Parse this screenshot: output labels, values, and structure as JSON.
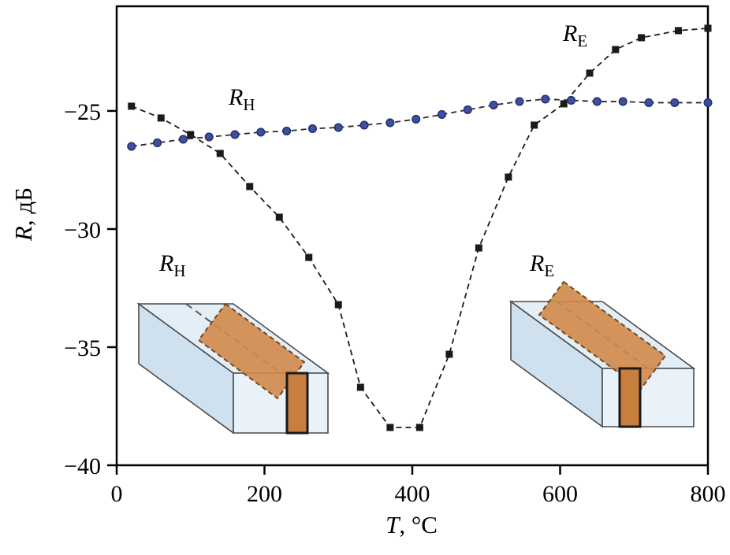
{
  "figure": {
    "y_axis": {
      "italic": "R",
      "rest": ", дБ"
    },
    "x_axis": {
      "italic": "T",
      "rest": ", °C"
    },
    "curve_labels": {
      "rh": {
        "symbol": "R",
        "sub": "H"
      },
      "re": {
        "symbol": "R",
        "sub": "E"
      }
    },
    "inset_labels": {
      "rh": {
        "symbol": "R",
        "sub": "H"
      },
      "re": {
        "symbol": "R",
        "sub": "E"
      }
    }
  },
  "chart_data": {
    "type": "line",
    "title": "",
    "xlabel": "T, °C",
    "ylabel": "R, дБ",
    "xlim": [
      0,
      800
    ],
    "ylim": [
      -40,
      -20.57
    ],
    "x_ticks": [
      0,
      200,
      400,
      600,
      800
    ],
    "y_ticks": [
      -25,
      -30,
      -35,
      -40
    ],
    "grid": false,
    "legend": "inline-labels",
    "series": [
      {
        "id": "re",
        "name": "R_E",
        "marker": "square",
        "marker_color": "#1a1a1a",
        "line_color": "#1a1a1a",
        "line_style": "dashed",
        "x": [
          20,
          60,
          100,
          140,
          180,
          220,
          260,
          300,
          330,
          370,
          410,
          450,
          490,
          530,
          565,
          605,
          640,
          675,
          710,
          760,
          800
        ],
        "y": [
          -24.8,
          -25.3,
          -26.0,
          -26.8,
          -28.2,
          -29.5,
          -31.2,
          -33.2,
          -36.7,
          -38.4,
          -38.4,
          -35.3,
          -30.8,
          -27.8,
          -25.6,
          -24.7,
          -23.4,
          -22.4,
          -21.9,
          -21.6,
          -21.5
        ]
      },
      {
        "id": "rh",
        "name": "R_H",
        "marker": "circle",
        "marker_color": "#3c4fa0",
        "marker_edge": "#25306e",
        "line_color": "#2a2a2a",
        "line_style": "dashed",
        "x": [
          20,
          55,
          90,
          125,
          160,
          195,
          230,
          265,
          300,
          335,
          370,
          405,
          440,
          475,
          510,
          545,
          580,
          615,
          650,
          685,
          720,
          755,
          800
        ],
        "y": [
          -26.5,
          -26.35,
          -26.2,
          -26.1,
          -26.0,
          -25.9,
          -25.85,
          -25.75,
          -25.7,
          -25.6,
          -25.5,
          -25.35,
          -25.15,
          -24.95,
          -24.75,
          -24.6,
          -24.5,
          -24.55,
          -24.6,
          -24.6,
          -24.65,
          -24.65,
          -24.65
        ]
      }
    ],
    "inset_colors": {
      "waveguide_top": "#e4eef7",
      "waveguide_side": "#cfe0ee",
      "waveguide_front": "#eaf2f9",
      "film_orange": "#d08848",
      "film_end": "#c87f3e",
      "film_edge": "#6b4a2a"
    }
  }
}
